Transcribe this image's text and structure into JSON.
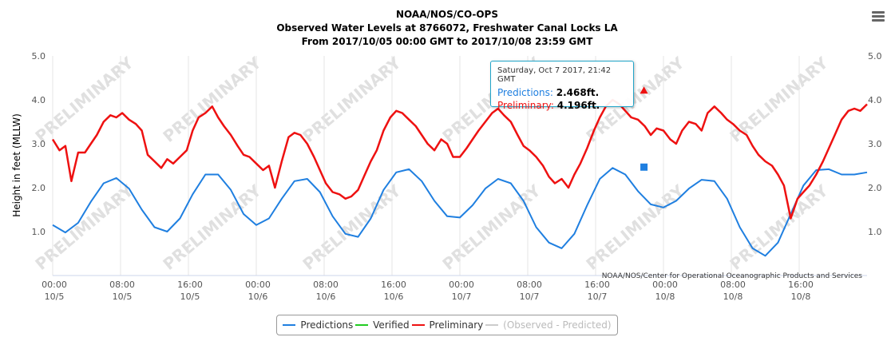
{
  "chart_data": {
    "type": "line",
    "title": "NOAA/NOS/CO-OPS",
    "subtitle_1": "Observed Water Levels at 8766072, Freshwater Canal Locks LA",
    "subtitle_2": "From 2017/10/05 00:00 GMT to 2017/10/08 23:59 GMT",
    "ylabel": "Height in feet (MLLW)",
    "ylim": [
      0,
      5
    ],
    "yticks": [
      "1.0",
      "2.0",
      "3.0",
      "4.0",
      "5.0"
    ],
    "xlim_hours": [
      0,
      96
    ],
    "xticks": [
      {
        "h": 0,
        "time": "00:00",
        "date": "10/5"
      },
      {
        "h": 8,
        "time": "08:00",
        "date": "10/5"
      },
      {
        "h": 16,
        "time": "16:00",
        "date": "10/5"
      },
      {
        "h": 24,
        "time": "00:00",
        "date": "10/6"
      },
      {
        "h": 32,
        "time": "08:00",
        "date": "10/6"
      },
      {
        "h": 40,
        "time": "16:00",
        "date": "10/6"
      },
      {
        "h": 48,
        "time": "00:00",
        "date": "10/7"
      },
      {
        "h": 56,
        "time": "08:00",
        "date": "10/7"
      },
      {
        "h": 64,
        "time": "16:00",
        "date": "10/7"
      },
      {
        "h": 72,
        "time": "00:00",
        "date": "10/8"
      },
      {
        "h": 80,
        "time": "08:00",
        "date": "10/8"
      },
      {
        "h": 88,
        "time": "16:00",
        "date": "10/8"
      }
    ],
    "grid": "vertical",
    "series": [
      {
        "name": "Predictions",
        "color": "#1f7fe0",
        "x": [
          0,
          1.5,
          3,
          4.5,
          6,
          7.5,
          9,
          10.5,
          12,
          13.5,
          15,
          16.5,
          18,
          19.5,
          21,
          22.5,
          24,
          25.5,
          27,
          28.5,
          30,
          31.5,
          33,
          34.5,
          36,
          37.5,
          39,
          40.5,
          42,
          43.5,
          45,
          46.5,
          48,
          49.5,
          51,
          52.5,
          54,
          55.5,
          57,
          58.5,
          60,
          61.5,
          63,
          64.5,
          66,
          67.5,
          69,
          70.5,
          72,
          73.5,
          75,
          76.5,
          78,
          79.5,
          81,
          82.5,
          84,
          85.5,
          87,
          88.5,
          90,
          91.5,
          93,
          94.5,
          96
        ],
        "values": [
          1.15,
          0.98,
          1.2,
          1.68,
          2.1,
          2.22,
          1.98,
          1.5,
          1.1,
          1.0,
          1.3,
          1.85,
          2.3,
          2.3,
          1.95,
          1.4,
          1.15,
          1.3,
          1.75,
          2.15,
          2.2,
          1.9,
          1.35,
          0.95,
          0.88,
          1.3,
          1.95,
          2.35,
          2.42,
          2.15,
          1.7,
          1.35,
          1.32,
          1.6,
          1.98,
          2.2,
          2.1,
          1.7,
          1.1,
          0.75,
          0.62,
          0.95,
          1.6,
          2.2,
          2.45,
          2.3,
          1.92,
          1.62,
          1.55,
          1.7,
          1.98,
          2.18,
          2.15,
          1.75,
          1.1,
          0.62,
          0.45,
          0.75,
          1.4,
          2.05,
          2.4,
          2.42,
          2.3,
          2.3,
          2.35
        ]
      },
      {
        "name": "Verified",
        "color": "#22cc22",
        "x": [],
        "values": []
      },
      {
        "name": "Preliminary",
        "color": "#ee1111",
        "x": [
          0,
          0.8,
          1.5,
          2.2,
          3,
          3.8,
          4.5,
          5.2,
          6,
          6.8,
          7.5,
          8.2,
          9,
          9.8,
          10.5,
          11.2,
          12,
          12.8,
          13.5,
          14.2,
          15,
          15.8,
          16.5,
          17.2,
          18,
          18.8,
          19.5,
          20.2,
          21,
          21.8,
          22.5,
          23.2,
          24,
          24.8,
          25.5,
          26.2,
          27,
          27.8,
          28.5,
          29.2,
          30,
          30.8,
          31.5,
          32.2,
          33,
          33.8,
          34.5,
          35.2,
          36,
          36.8,
          37.5,
          38.2,
          39,
          39.8,
          40.5,
          41.2,
          42,
          42.8,
          43.5,
          44.2,
          45,
          45.8,
          46.5,
          47.2,
          48,
          48.8,
          49.5,
          50.2,
          51,
          51.8,
          52.5,
          53.2,
          54,
          54.8,
          55.5,
          56.2,
          57,
          57.8,
          58.5,
          59.2,
          60,
          60.8,
          61.5,
          62.2,
          63,
          63.8,
          64.5,
          65.2,
          66,
          66.8,
          67.5,
          68.2,
          69,
          69.8,
          70.5,
          71.2,
          72,
          72.8,
          73.5,
          74.2,
          75,
          75.8,
          76.5,
          77.2,
          78,
          78.8,
          79.5,
          80.2,
          81,
          81.8,
          82.5,
          83.2,
          84,
          84.8,
          85.5,
          86.2,
          87,
          87.8,
          88.5,
          89.2,
          90,
          90.8,
          91.5,
          92.2,
          93,
          93.8,
          94.5,
          95.2,
          96
        ],
        "values": [
          3.1,
          2.85,
          2.95,
          2.15,
          2.8,
          2.8,
          3.0,
          3.2,
          3.5,
          3.65,
          3.6,
          3.7,
          3.55,
          3.45,
          3.3,
          2.75,
          2.6,
          2.45,
          2.65,
          2.55,
          2.7,
          2.85,
          3.3,
          3.6,
          3.7,
          3.85,
          3.6,
          3.4,
          3.2,
          2.95,
          2.75,
          2.7,
          2.55,
          2.4,
          2.5,
          2.0,
          2.6,
          3.15,
          3.25,
          3.2,
          3.0,
          2.7,
          2.4,
          2.1,
          1.9,
          1.85,
          1.75,
          1.8,
          1.95,
          2.3,
          2.6,
          2.85,
          3.3,
          3.6,
          3.75,
          3.7,
          3.55,
          3.4,
          3.2,
          3.0,
          2.85,
          3.1,
          3.0,
          2.7,
          2.7,
          2.9,
          3.1,
          3.3,
          3.5,
          3.7,
          3.8,
          3.65,
          3.5,
          3.2,
          2.95,
          2.85,
          2.7,
          2.5,
          2.25,
          2.1,
          2.2,
          2.0,
          2.3,
          2.55,
          2.9,
          3.3,
          3.6,
          3.85,
          4.0,
          3.9,
          3.75,
          3.6,
          3.55,
          3.4,
          3.2,
          3.35,
          3.3,
          3.1,
          3.0,
          3.3,
          3.5,
          3.45,
          3.3,
          3.7,
          3.85,
          3.7,
          3.55,
          3.45,
          3.3,
          3.2,
          2.95,
          2.75,
          2.6,
          2.5,
          2.3,
          2.05,
          1.3,
          1.75,
          1.9,
          2.05,
          2.3,
          2.6,
          2.9,
          3.2,
          3.55,
          3.75,
          3.8,
          3.75,
          3.9
        ]
      },
      {
        "name": "(Observed - Predicted)",
        "color": "#cccccc",
        "x": [],
        "values": []
      }
    ],
    "highlight": {
      "h": 69.7,
      "predictions": 2.468,
      "preliminary": 4.196
    }
  },
  "tooltip": {
    "date": "Saturday, Oct 7 2017, 21:42 GMT",
    "pred_label": "Predictions:",
    "pred_value": "2.468ft.",
    "prelim_label": "Preliminary:",
    "prelim_value": "4.196ft."
  },
  "watermark": "PRELIMINARY",
  "credit": "NOAA/NOS/Center for Operational Oceanographic Products and Services",
  "legend": {
    "items": [
      {
        "label": "Predictions",
        "color": "#1f7fe0"
      },
      {
        "label": "Verified",
        "color": "#22cc22"
      },
      {
        "label": "Preliminary",
        "color": "#ee1111"
      },
      {
        "label": "(Observed - Predicted)",
        "color": "#cccccc"
      }
    ]
  },
  "menu": {
    "icon": "hamburger-menu-icon"
  }
}
